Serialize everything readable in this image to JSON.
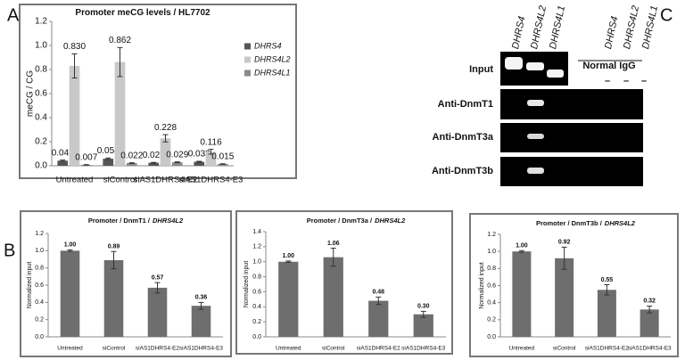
{
  "panels": [
    "A",
    "B",
    "C"
  ],
  "chart_data": [
    {
      "type": "bar",
      "title": "Promoter meCG levels / HL7702",
      "ylabel": "meCG / CG",
      "categories": [
        "Untreated",
        "siControl",
        "siAS1DHRS4-E2",
        "siAS1DHRS4-E3"
      ],
      "series": [
        {
          "name": "DHRS4",
          "color": "#555555",
          "values": [
            0.042,
            0.058,
            0.025,
            0.033
          ],
          "errors": [
            0.005,
            0.006,
            0.003,
            0.004
          ]
        },
        {
          "name": "DHRS4L2",
          "color": "#c8c8c8",
          "values": [
            0.83,
            0.862,
            0.228,
            0.116
          ],
          "value_labels": [
            "0.830",
            "0.862",
            "0.228",
            "0.116"
          ],
          "errors": [
            0.1,
            0.12,
            0.03,
            0.02
          ]
        },
        {
          "name": "DHRS4L1",
          "color": "#8a8a8a",
          "values": [
            0.007,
            0.022,
            0.029,
            0.015
          ],
          "errors": [
            0.002,
            0.003,
            0.003,
            0.002
          ]
        }
      ],
      "ylim": [
        0,
        1.2
      ],
      "yticks": [
        {
          "value": 0,
          "label": "0.0"
        },
        0.2,
        0.4,
        0.6,
        0.8,
        {
          "value": 1,
          "label": "1.0"
        },
        1.2
      ],
      "legend": "right"
    },
    {
      "type": "bar",
      "title": "Promoter / DnmT1 /",
      "title_gene": "DHRS4L2",
      "ylabel": "Normalized input",
      "categories": [
        "Untreated",
        "siControl",
        "siAS1DHRS4-E2",
        "siAS1DHRS4-E3"
      ],
      "values": [
        1,
        0.89,
        0.57,
        0.36
      ],
      "value_labels": [
        "1.00",
        "0.89",
        "0.57",
        "0.36"
      ],
      "errors": [
        0.01,
        0.1,
        0.06,
        0.04
      ],
      "color": "#6e6e6e",
      "ylim": [
        0,
        1.2
      ],
      "yticks": [
        {
          "value": 0,
          "label": "0.0"
        },
        0.2,
        0.4,
        0.6,
        0.8,
        {
          "value": 1,
          "label": "1.0"
        },
        1.2
      ]
    },
    {
      "type": "bar",
      "title": "Promoter / DnmT3a /",
      "title_gene": "DHRS4L2",
      "ylabel": "Normalized input",
      "categories": [
        "Untreated",
        "siControl",
        "siAS1DHRS4-E2",
        "siAS1DHRS4-E3"
      ],
      "values": [
        1,
        1.06,
        0.48,
        0.3
      ],
      "value_labels": [
        "1.00",
        "1.06",
        "0.48",
        "0.30"
      ],
      "errors": [
        0.01,
        0.12,
        0.05,
        0.04
      ],
      "color": "#6e6e6e",
      "ylim": [
        0,
        1.4
      ],
      "yticks": [
        {
          "value": 0,
          "label": "0.0"
        },
        0.2,
        0.4,
        0.6,
        0.8,
        {
          "value": 1,
          "label": "1.0"
        },
        1.2,
        1.4
      ]
    },
    {
      "type": "bar",
      "title": "Promoter / DnmT3b /",
      "title_gene": "DHRS4L2",
      "ylabel": "Normalized input",
      "categories": [
        "Untreated",
        "siControl",
        "siAS1DHRS4-E2",
        "siAS1DHRS4-E3"
      ],
      "values": [
        1,
        0.92,
        0.55,
        0.32
      ],
      "value_labels": [
        "1.00",
        "0.92",
        "0.55",
        "0.32"
      ],
      "errors": [
        0.01,
        0.13,
        0.06,
        0.04
      ],
      "color": "#6e6e6e",
      "ylim": [
        0,
        1.2
      ],
      "yticks": [
        {
          "value": 0,
          "label": "0.0"
        },
        0.2,
        0.4,
        0.6,
        0.8,
        {
          "value": 1,
          "label": "1.0"
        },
        1.2
      ]
    }
  ],
  "gel": {
    "lanes": [
      "DHRS4",
      "DHRS4L2",
      "DHRS4L1",
      "DHRS4",
      "DHRS4L2",
      "DHRS4L1"
    ],
    "rows": [
      "Input",
      "Anti-DnmT1",
      "Anti-DnmT3a",
      "Anti-DnmT3b"
    ],
    "control_label": "Normal IgG",
    "control_marks": [
      "–",
      "–",
      "–"
    ]
  }
}
